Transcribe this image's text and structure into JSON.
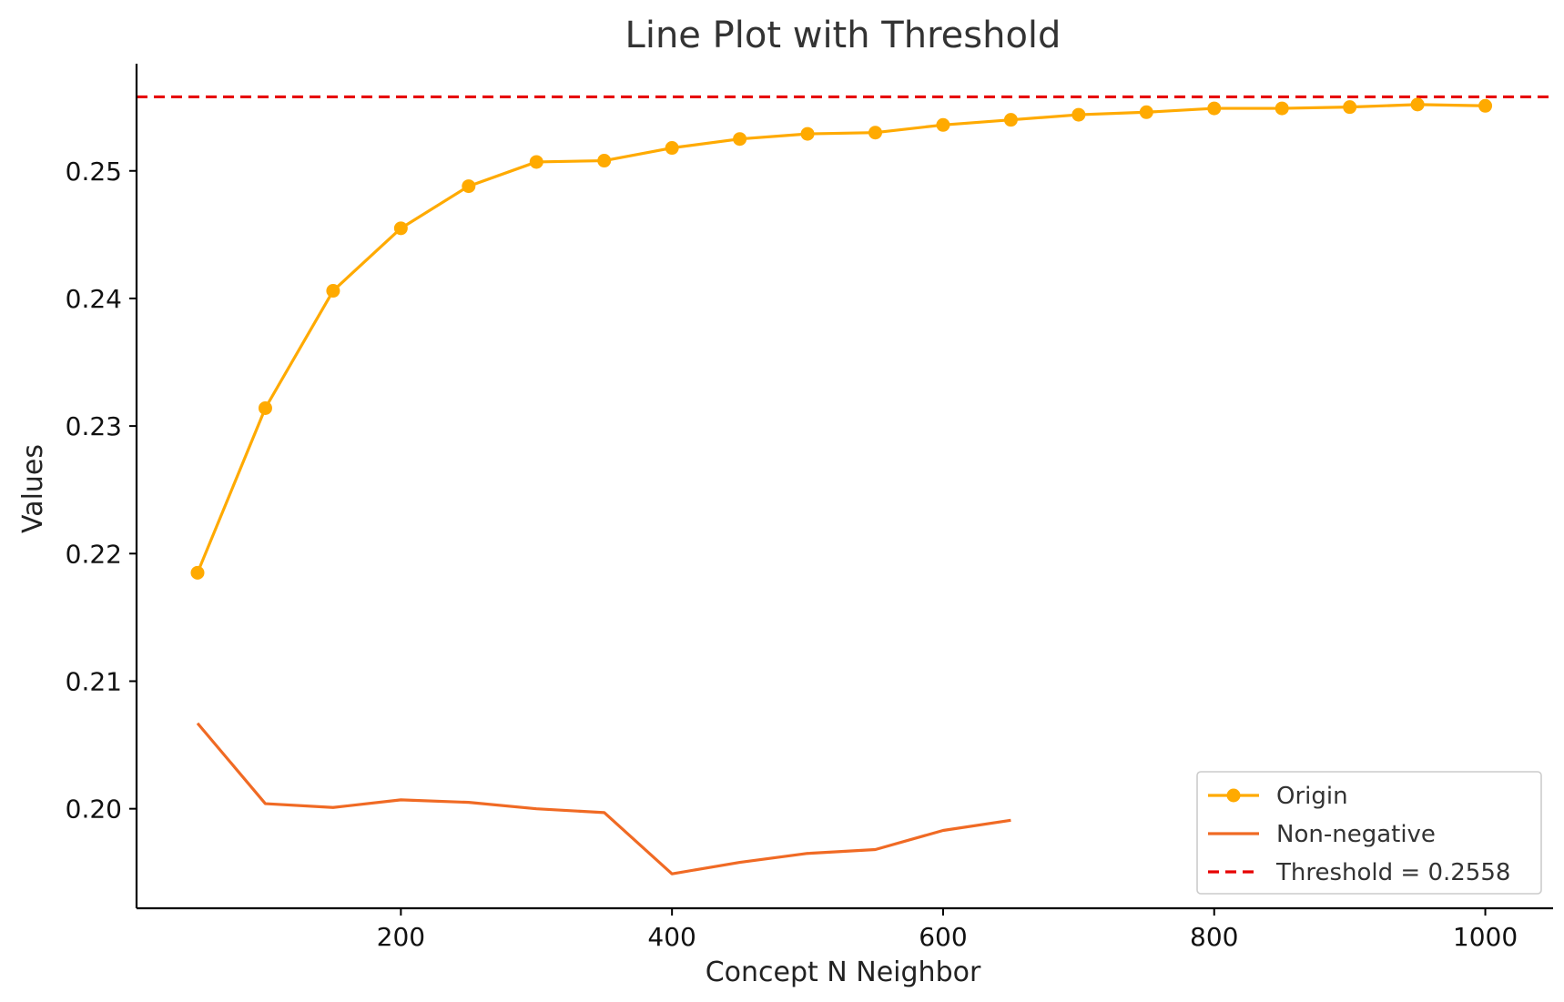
{
  "chart_data": {
    "type": "line",
    "title": "Line Plot with Threshold",
    "xlabel": "Concept N Neighbor",
    "ylabel": "Values",
    "xlim": [
      5,
      1050
    ],
    "ylim": [
      0.1922,
      0.2584
    ],
    "xticks": [
      200,
      400,
      600,
      800,
      1000
    ],
    "xtick_labels": [
      "200",
      "400",
      "600",
      "800",
      "1000"
    ],
    "yticks": [
      0.2,
      0.21,
      0.22,
      0.23,
      0.24,
      0.25
    ],
    "ytick_labels": [
      "0.20",
      "0.21",
      "0.22",
      "0.23",
      "0.24",
      "0.25"
    ],
    "grid": false,
    "legend_position": "bottom-right",
    "series": [
      {
        "name": "Origin",
        "color": "#ffaa00",
        "marker": "circle",
        "x": [
          50,
          100,
          150,
          200,
          250,
          300,
          350,
          400,
          450,
          500,
          550,
          600,
          650,
          700,
          750,
          800,
          850,
          900,
          950,
          1000
        ],
        "y": [
          0.2185,
          0.2314,
          0.2406,
          0.2455,
          0.2488,
          0.2507,
          0.2508,
          0.2518,
          0.2525,
          0.2529,
          0.253,
          0.2536,
          0.254,
          0.2544,
          0.2546,
          0.2549,
          0.2549,
          0.255,
          0.2552,
          0.2551
        ]
      },
      {
        "name": "Non-negative",
        "color": "#f06a24",
        "marker": "none",
        "x": [
          50,
          100,
          150,
          200,
          250,
          300,
          350,
          400,
          450,
          500,
          550,
          600,
          650
        ],
        "y": [
          0.2067,
          0.2004,
          0.2001,
          0.2007,
          0.2005,
          0.2,
          0.1997,
          0.1949,
          0.1958,
          0.1965,
          0.1968,
          0.1983,
          0.1991
        ]
      }
    ],
    "threshold": {
      "label": "Threshold = 0.2558",
      "value": 0.2558,
      "color": "#e60000",
      "style": "dashed"
    }
  }
}
